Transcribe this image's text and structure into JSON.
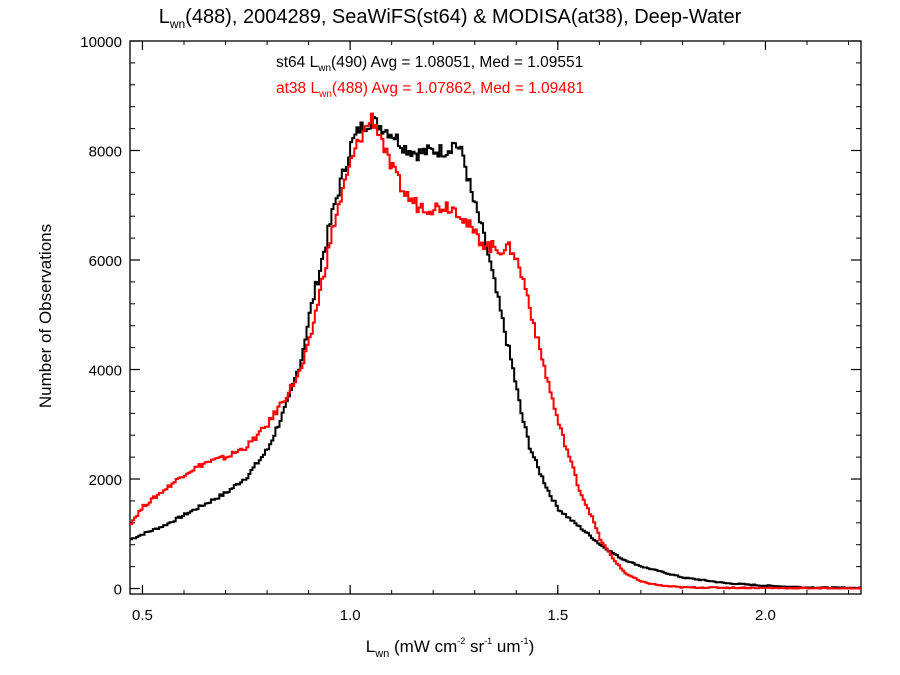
{
  "title": {
    "prefix": "L",
    "subscript": "wn",
    "rest": "(488), 2004289, SeaWiFS(st64) & MODISA(at38), Deep-Water"
  },
  "legend": [
    {
      "pre": "st64 L",
      "sub": "wn",
      "post": "(490) Avg = 1.08051, Med = 1.09551",
      "color": "#000000"
    },
    {
      "pre": "at38 L",
      "sub": "wn",
      "post": "(488) Avg = 1.07862, Med = 1.09481",
      "color": "#ff0000"
    }
  ],
  "axes": {
    "ylabel": "Number of Observations",
    "xlabel": {
      "pre": "L",
      "sub": "wn",
      "mid1": " (mW cm",
      "sup1": "-2",
      "mid2": " sr",
      "sup2": "-1",
      "mid3": " um",
      "sup3": "-1",
      "post": ")"
    }
  },
  "chart_data": {
    "type": "line",
    "step": true,
    "title": "Lwn(488), 2004289, SeaWiFS(st64) & MODISA(at38), Deep-Water",
    "xlabel": "Lwn (mW cm-2 sr-1 um-1)",
    "ylabel": "Number of Observations",
    "xlim": [
      0.47,
      2.23
    ],
    "ylim": [
      -100,
      10000
    ],
    "xticks": [
      "0.5",
      "1.0",
      "1.5",
      "2.0"
    ],
    "yticks": [
      "0",
      "2000",
      "4000",
      "6000",
      "8000",
      "10000"
    ],
    "legend_position": "top-center",
    "series": [
      {
        "name": "st64 Lwn(490) Avg = 1.08051, Med = 1.09551",
        "color": "#000000",
        "points": [
          [
            0.47,
            900
          ],
          [
            0.5,
            1000
          ],
          [
            0.55,
            1150
          ],
          [
            0.6,
            1350
          ],
          [
            0.65,
            1550
          ],
          [
            0.7,
            1750
          ],
          [
            0.75,
            2050
          ],
          [
            0.8,
            2550
          ],
          [
            0.85,
            3450
          ],
          [
            0.88,
            4200
          ],
          [
            0.9,
            5000
          ],
          [
            0.93,
            6000
          ],
          [
            0.96,
            7000
          ],
          [
            1.0,
            8100
          ],
          [
            1.02,
            8400
          ],
          [
            1.05,
            8550
          ],
          [
            1.07,
            8450
          ],
          [
            1.1,
            8300
          ],
          [
            1.13,
            8050
          ],
          [
            1.16,
            7950
          ],
          [
            1.2,
            8000
          ],
          [
            1.23,
            8000
          ],
          [
            1.25,
            8150
          ],
          [
            1.27,
            7900
          ],
          [
            1.29,
            7200
          ],
          [
            1.31,
            6700
          ],
          [
            1.33,
            6100
          ],
          [
            1.35,
            5400
          ],
          [
            1.37,
            4700
          ],
          [
            1.39,
            4000
          ],
          [
            1.41,
            3200
          ],
          [
            1.43,
            2600
          ],
          [
            1.45,
            2200
          ],
          [
            1.48,
            1700
          ],
          [
            1.5,
            1450
          ],
          [
            1.53,
            1250
          ],
          [
            1.57,
            1000
          ],
          [
            1.6,
            800
          ],
          [
            1.65,
            550
          ],
          [
            1.7,
            400
          ],
          [
            1.8,
            200
          ],
          [
            1.9,
            100
          ],
          [
            2.0,
            50
          ],
          [
            2.1,
            20
          ],
          [
            2.23,
            10
          ]
        ]
      },
      {
        "name": "at38 Lwn(488) Avg = 1.07862, Med = 1.09481",
        "color": "#ff0000",
        "points": [
          [
            0.47,
            1200
          ],
          [
            0.5,
            1500
          ],
          [
            0.55,
            1800
          ],
          [
            0.6,
            2100
          ],
          [
            0.65,
            2300
          ],
          [
            0.7,
            2400
          ],
          [
            0.75,
            2600
          ],
          [
            0.8,
            3000
          ],
          [
            0.85,
            3600
          ],
          [
            0.88,
            4000
          ],
          [
            0.9,
            4500
          ],
          [
            0.93,
            5600
          ],
          [
            0.96,
            6700
          ],
          [
            1.0,
            7800
          ],
          [
            1.02,
            8200
          ],
          [
            1.05,
            8600
          ],
          [
            1.07,
            8300
          ],
          [
            1.09,
            7800
          ],
          [
            1.11,
            7500
          ],
          [
            1.13,
            7200
          ],
          [
            1.16,
            7000
          ],
          [
            1.2,
            6950
          ],
          [
            1.23,
            7000
          ],
          [
            1.26,
            6900
          ],
          [
            1.28,
            6650
          ],
          [
            1.3,
            6450
          ],
          [
            1.33,
            6250
          ],
          [
            1.36,
            6200
          ],
          [
            1.39,
            6200
          ],
          [
            1.42,
            5500
          ],
          [
            1.45,
            4500
          ],
          [
            1.48,
            3600
          ],
          [
            1.5,
            3000
          ],
          [
            1.53,
            2300
          ],
          [
            1.55,
            1800
          ],
          [
            1.58,
            1300
          ],
          [
            1.6,
            900
          ],
          [
            1.63,
            550
          ],
          [
            1.66,
            280
          ],
          [
            1.7,
            120
          ],
          [
            1.75,
            50
          ],
          [
            1.8,
            20
          ],
          [
            2.23,
            0
          ]
        ]
      }
    ]
  }
}
